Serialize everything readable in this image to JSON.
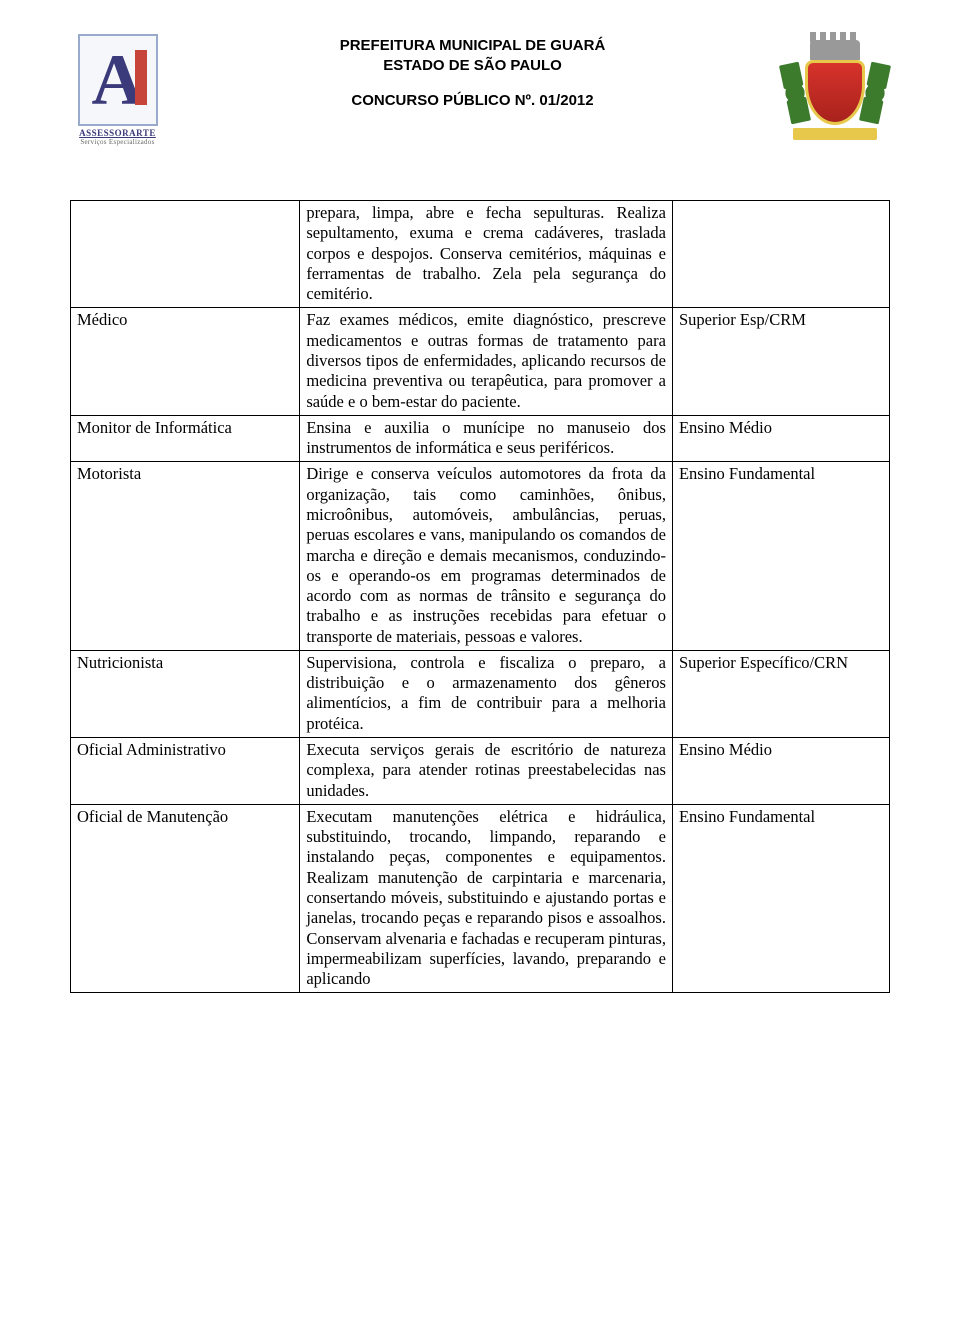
{
  "header": {
    "line1": "PREFEITURA MUNICIPAL DE GUARÁ",
    "line2": "ESTADO DE SÃO PAULO",
    "line3": "CONCURSO PÚBLICO Nº. 01/2012",
    "logo_left_main": "ASSESSORARTE",
    "logo_left_sub": "Serviços Especializados"
  },
  "colors": {
    "text": "#000000",
    "border": "#000000",
    "background": "#ffffff"
  },
  "rows": [
    {
      "job": "",
      "desc": "prepara, limpa, abre e fecha sepulturas. Realiza sepultamento, exuma e crema cadáveres, traslada corpos e despojos. Conserva cemitérios, máquinas e ferramentas de trabalho. Zela pela segurança do cemitério.",
      "req": ""
    },
    {
      "job": "Médico",
      "desc": "Faz exames médicos, emite diagnóstico, prescreve medicamentos e outras formas de tratamento para diversos tipos de enfermidades, aplicando recursos de medicina preventiva ou terapêutica, para promover a saúde e o bem-estar do paciente.",
      "req": "Superior Esp/CRM"
    },
    {
      "job": "Monitor de Informática",
      "desc": " Ensina e auxilia o munícipe no manuseio dos instrumentos de informática e seus periféricos.",
      "req": "Ensino Médio"
    },
    {
      "job": "Motorista",
      "desc": "Dirige e conserva veículos automotores da frota da organização, tais como caminhões, ônibus, microônibus, automóveis, ambulâncias, peruas, peruas escolares e vans, manipulando os comandos de marcha e direção e demais mecanismos, conduzindo-os e operando-os em programas determinados de acordo com as normas de trânsito e segurança do trabalho e as instruções recebidas para efetuar o transporte de materiais, pessoas e valores.",
      "req": "Ensino Fundamental"
    },
    {
      "job": "Nutricionista",
      "desc": "Supervisiona, controla e fiscaliza o preparo, a distribuição e o armazenamento dos gêneros alimentícios, a fim de contribuir para a melhoria protéica.",
      "req": "Superior Específico/CRN"
    },
    {
      "job": "Oficial Administrativo",
      "desc": "Executa serviços gerais de escritório de natureza complexa, para atender rotinas preestabelecidas nas unidades.",
      "req": "Ensino Médio"
    },
    {
      "job": "Oficial de Manutenção",
      "desc": "Executam manutenções elétrica e hidráulica, substituindo, trocando, limpando, reparando e instalando peças, componentes e equipamentos. Realizam manutenção de carpintaria e marcenaria, consertando móveis, substituindo e ajustando portas e janelas, trocando peças e reparando pisos e assoalhos. Conservam alvenaria e fachadas e recuperam pinturas, impermeabilizam superfícies, lavando, preparando e aplicando",
      "req": "Ensino Fundamental"
    }
  ]
}
